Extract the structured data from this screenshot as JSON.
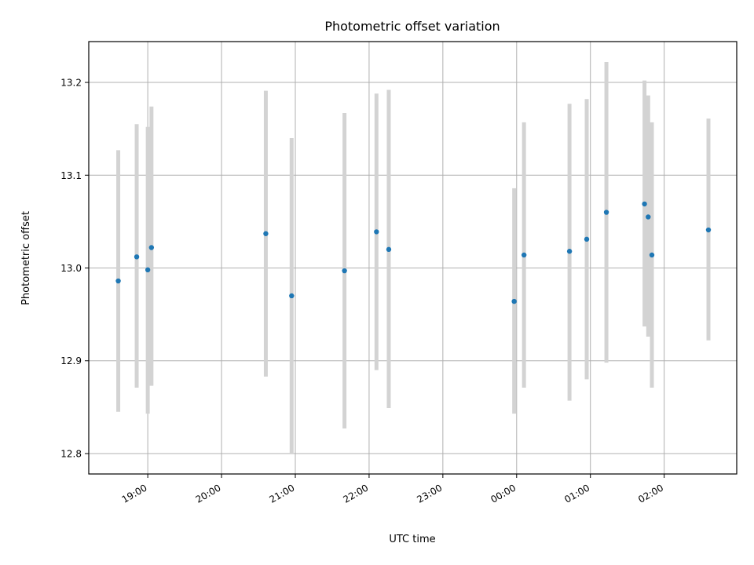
{
  "chart_data": {
    "type": "scatter",
    "title": "Photometric offset variation",
    "xlabel": "UTC time",
    "ylabel": "Photometric offset",
    "x_tick_labels": [
      "19:00",
      "20:00",
      "21:00",
      "22:00",
      "23:00",
      "00:00",
      "01:00",
      "02:00"
    ],
    "x_ticks": [
      "19:00",
      "20:00",
      "21:00",
      "22:00",
      "23:00",
      "00:00",
      "01:00",
      "02:00"
    ],
    "xlim": [
      "18:12",
      "02:59"
    ],
    "y_tick_labels": [
      "12.8",
      "12.9",
      "13.0",
      "13.1",
      "13.2"
    ],
    "y_ticks": [
      12.8,
      12.9,
      13.0,
      13.1,
      13.2
    ],
    "ylim": [
      12.778,
      13.244
    ],
    "grid": true,
    "colors": {
      "points": "#1f77b4",
      "errorbars": "#d3d3d3",
      "grid": "#b0b0b0"
    },
    "points": [
      {
        "x": "18:36",
        "y": 12.986,
        "yerr_low": 12.845,
        "yerr_high": 13.127
      },
      {
        "x": "18:51",
        "y": 13.012,
        "yerr_low": 12.871,
        "yerr_high": 13.155
      },
      {
        "x": "19:00",
        "y": 12.998,
        "yerr_low": 12.843,
        "yerr_high": 13.152
      },
      {
        "x": "19:03",
        "y": 13.022,
        "yerr_low": 12.873,
        "yerr_high": 13.174
      },
      {
        "x": "20:36",
        "y": 13.037,
        "yerr_low": 12.883,
        "yerr_high": 13.191
      },
      {
        "x": "20:57",
        "y": 12.97,
        "yerr_low": 12.8,
        "yerr_high": 13.14
      },
      {
        "x": "21:40",
        "y": 12.997,
        "yerr_low": 12.827,
        "yerr_high": 13.167
      },
      {
        "x": "22:06",
        "y": 13.039,
        "yerr_low": 12.89,
        "yerr_high": 13.188
      },
      {
        "x": "22:16",
        "y": 13.02,
        "yerr_low": 12.849,
        "yerr_high": 13.192
      },
      {
        "x": "23:58",
        "y": 12.964,
        "yerr_low": 12.843,
        "yerr_high": 13.086
      },
      {
        "x": "00:06",
        "y": 13.014,
        "yerr_low": 12.871,
        "yerr_high": 13.157
      },
      {
        "x": "00:43",
        "y": 13.018,
        "yerr_low": 12.857,
        "yerr_high": 13.177
      },
      {
        "x": "00:57",
        "y": 13.031,
        "yerr_low": 12.88,
        "yerr_high": 13.182
      },
      {
        "x": "01:13",
        "y": 13.06,
        "yerr_low": 12.898,
        "yerr_high": 13.222
      },
      {
        "x": "01:44",
        "y": 13.069,
        "yerr_low": 12.937,
        "yerr_high": 13.202
      },
      {
        "x": "01:47",
        "y": 13.055,
        "yerr_low": 12.926,
        "yerr_high": 13.186
      },
      {
        "x": "01:50",
        "y": 13.014,
        "yerr_low": 12.871,
        "yerr_high": 13.157
      },
      {
        "x": "02:36",
        "y": 13.041,
        "yerr_low": 12.922,
        "yerr_high": 13.161
      }
    ]
  }
}
